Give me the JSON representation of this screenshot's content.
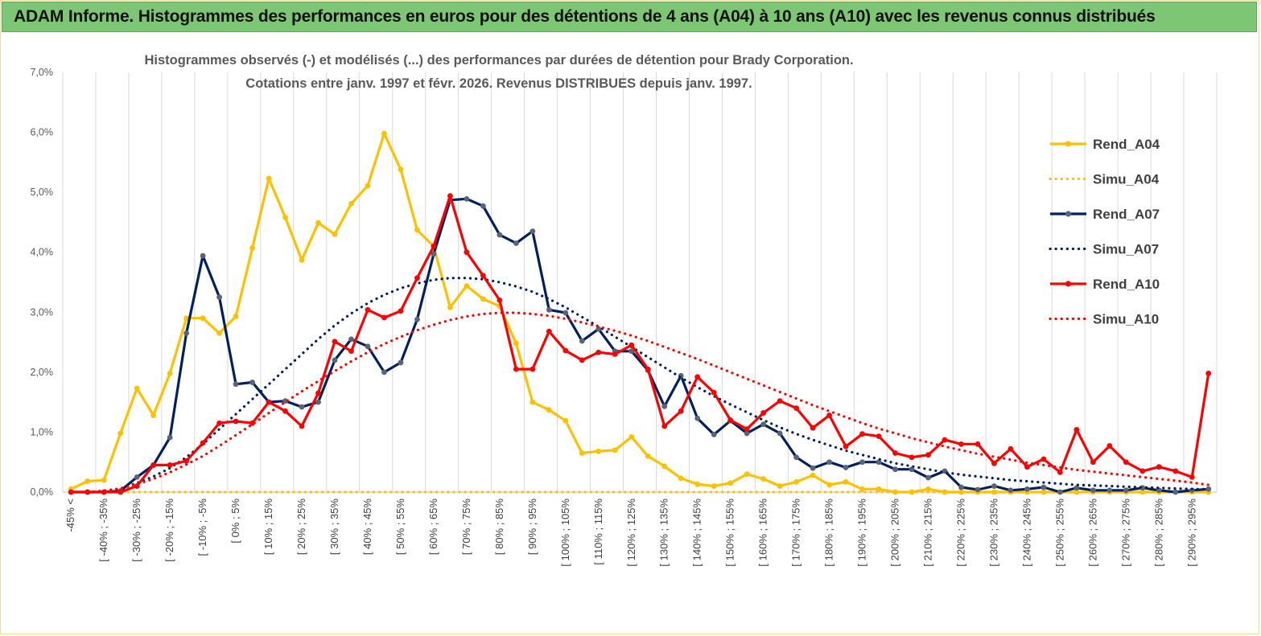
{
  "header": {
    "title": "ADAM Informe. Histogrammes des performances en euros pour des détentions de 4 ans (A04) à 10 ans (A10) avec les revenus connus distribués"
  },
  "chart_data": {
    "type": "line",
    "title_line1": "Histogrammes observés (-) et modélisés (...) des performances par durées de détention pour Brady Corporation.",
    "title_line2": "Cotations entre janv. 1997 et févr. 2026. Revenus DISTRIBUES depuis janv. 1997.",
    "ylim": [
      0,
      7
    ],
    "yticks": [
      "0,0%",
      "1,0%",
      "2,0%",
      "3,0%",
      "4,0%",
      "5,0%",
      "6,0%",
      "7,0%"
    ],
    "x_labels": [
      "-45% <",
      "[ -40% ; -35%",
      "[ -30% ; -25%",
      "[ -20% ; -15%",
      "[ -10% ; -5%",
      "[ 0% ; 5%",
      "[ 10% ; 15%",
      "[ 20% ; 25%",
      "[ 30% ; 35%",
      "[ 40% ; 45%",
      "[ 50% ; 55%",
      "[ 60% ; 65%",
      "[ 70% ; 75%",
      "[ 80% ; 85%",
      "[ 90% ; 95%",
      "[ 100% ; 105%",
      "[ 110% ; 115%",
      "[ 120% ; 125%",
      "[ 130% ; 135%",
      "[ 140% ; 145%",
      "[ 150% ; 155%",
      "[ 160% ; 165%",
      "[ 170% ; 175%",
      "[ 180% ; 185%",
      "[ 190% ; 195%",
      "[ 200% ; 205%",
      "[ 210% ; 215%",
      "[ 220% ; 225%",
      "[ 230% ; 235%",
      "[ 240% ; 245%",
      "[ 250% ; 255%",
      "[ 260% ; 265%",
      "[ 270% ; 275%",
      "[ 280% ; 285%",
      "[ 290% ; 295%"
    ],
    "n_points": 70,
    "series": [
      {
        "name": "Rend_A04",
        "style": "solid",
        "color": "#FFC000",
        "values": [
          0.05,
          0.18,
          0.2,
          0.98,
          1.73,
          1.28,
          1.98,
          2.9,
          2.9,
          2.65,
          2.93,
          4.07,
          5.23,
          4.58,
          3.87,
          4.49,
          4.3,
          4.81,
          5.11,
          5.98,
          5.38,
          4.37,
          4.1,
          3.08,
          3.44,
          3.22,
          3.1,
          2.48,
          1.5,
          1.37,
          1.19,
          0.65,
          0.68,
          0.7,
          0.92,
          0.6,
          0.43,
          0.23,
          0.13,
          0.1,
          0.15,
          0.3,
          0.22,
          0.1,
          0.17,
          0.28,
          0.12,
          0.17,
          0.05,
          0.05,
          0.0,
          0.0,
          0.05,
          0.0,
          0.0,
          0.0,
          0.0,
          0.0,
          0.0,
          0.0,
          0.0,
          0.0,
          0.0,
          0.0,
          0.0,
          0.0,
          0.0,
          0.0,
          0.0,
          0.0
        ]
      },
      {
        "name": "Simu_A04",
        "style": "dotted",
        "color": "#FFC000",
        "values": [
          0.0,
          0.0,
          0.0,
          0.0,
          0.0,
          0.0,
          0.0,
          0.0,
          0.0,
          0.0,
          0.0,
          0.0,
          0.0,
          0.0,
          0.0,
          0.0,
          0.0,
          0.0,
          0.0,
          0.0,
          0.0,
          0.0,
          0.0,
          0.0,
          0.0,
          0.0,
          0.0,
          0.0,
          0.0,
          0.0,
          0.0,
          0.0,
          0.0,
          0.0,
          0.0,
          0.0,
          0.0,
          0.0,
          0.0,
          0.0,
          0.0,
          0.0,
          0.0,
          0.0,
          0.0,
          0.0,
          0.0,
          0.0,
          0.0,
          0.0,
          0.0,
          0.0,
          0.0,
          0.0,
          0.0,
          0.0,
          0.0,
          0.0,
          0.0,
          0.0,
          0.0,
          0.0,
          0.0,
          0.0,
          0.0,
          0.0,
          0.0,
          0.0,
          0.0,
          0.0
        ]
      },
      {
        "name": "Rend_A07",
        "style": "solid",
        "color": "#002060",
        "values": [
          0.0,
          0.0,
          0.0,
          0.02,
          0.25,
          0.45,
          0.91,
          2.65,
          3.94,
          3.25,
          1.8,
          1.83,
          1.5,
          1.52,
          1.42,
          1.5,
          2.2,
          2.55,
          2.43,
          2.0,
          2.16,
          2.88,
          3.97,
          4.87,
          4.89,
          4.77,
          4.29,
          4.15,
          4.35,
          3.04,
          2.99,
          2.52,
          2.72,
          2.35,
          2.35,
          2.03,
          1.43,
          1.94,
          1.23,
          0.96,
          1.19,
          0.98,
          1.13,
          0.98,
          0.58,
          0.4,
          0.5,
          0.41,
          0.5,
          0.5,
          0.38,
          0.38,
          0.24,
          0.35,
          0.08,
          0.04,
          0.1,
          0.03,
          0.05,
          0.08,
          0.0,
          0.07,
          0.03,
          0.03,
          0.03,
          0.07,
          0.03,
          0.0,
          0.03,
          0.05
        ]
      },
      {
        "name": "Simu_A07",
        "style": "dotted",
        "color": "#002060",
        "values": [
          0.0,
          0.0,
          0.02,
          0.06,
          0.15,
          0.26,
          0.4,
          0.58,
          0.8,
          1.05,
          1.3,
          1.55,
          1.8,
          2.05,
          2.3,
          2.55,
          2.78,
          2.98,
          3.15,
          3.29,
          3.4,
          3.48,
          3.54,
          3.57,
          3.57,
          3.55,
          3.5,
          3.43,
          3.34,
          3.22,
          3.08,
          2.92,
          2.76,
          2.59,
          2.42,
          2.25,
          2.08,
          1.91,
          1.75,
          1.6,
          1.46,
          1.33,
          1.2,
          1.08,
          0.97,
          0.87,
          0.78,
          0.69,
          0.62,
          0.55,
          0.48,
          0.43,
          0.38,
          0.33,
          0.29,
          0.26,
          0.23,
          0.2,
          0.18,
          0.16,
          0.14,
          0.12,
          0.11,
          0.1,
          0.09,
          0.08,
          0.07,
          0.06,
          0.05,
          0.05
        ]
      },
      {
        "name": "Rend_A10",
        "style": "solid",
        "color": "#FF0000",
        "values": [
          0.0,
          0.0,
          0.0,
          0.0,
          0.1,
          0.45,
          0.45,
          0.52,
          0.82,
          1.15,
          1.18,
          1.15,
          1.5,
          1.35,
          1.1,
          1.65,
          2.51,
          2.35,
          3.04,
          2.91,
          3.02,
          3.57,
          4.1,
          4.94,
          4.0,
          3.61,
          3.2,
          2.05,
          2.05,
          2.68,
          2.36,
          2.2,
          2.33,
          2.3,
          2.45,
          2.05,
          1.1,
          1.35,
          1.92,
          1.66,
          1.2,
          1.05,
          1.32,
          1.52,
          1.4,
          1.07,
          1.28,
          0.76,
          0.97,
          0.93,
          0.65,
          0.58,
          0.62,
          0.87,
          0.8,
          0.8,
          0.48,
          0.72,
          0.42,
          0.55,
          0.33,
          1.04,
          0.5,
          0.77,
          0.5,
          0.35,
          0.42,
          0.35,
          0.25,
          1.98
        ]
      },
      {
        "name": "Simu_A10",
        "style": "dotted",
        "color": "#FF0000",
        "values": [
          0.0,
          0.0,
          0.02,
          0.06,
          0.13,
          0.22,
          0.33,
          0.46,
          0.6,
          0.77,
          0.95,
          1.13,
          1.32,
          1.5,
          1.68,
          1.85,
          2.02,
          2.18,
          2.33,
          2.47,
          2.59,
          2.7,
          2.79,
          2.87,
          2.93,
          2.97,
          2.99,
          2.99,
          2.97,
          2.94,
          2.89,
          2.83,
          2.76,
          2.69,
          2.61,
          2.52,
          2.42,
          2.32,
          2.22,
          2.11,
          2.0,
          1.89,
          1.78,
          1.67,
          1.56,
          1.45,
          1.35,
          1.25,
          1.15,
          1.06,
          0.98,
          0.9,
          0.83,
          0.76,
          0.7,
          0.64,
          0.59,
          0.54,
          0.49,
          0.45,
          0.41,
          0.37,
          0.34,
          0.31,
          0.28,
          0.25,
          0.22,
          0.19,
          0.16,
          0.12
        ]
      }
    ],
    "legend": [
      "Rend_A04",
      "Simu_A04",
      "Rend_A07",
      "Simu_A07",
      "Rend_A10",
      "Simu_A10"
    ],
    "legend_position": "right"
  }
}
